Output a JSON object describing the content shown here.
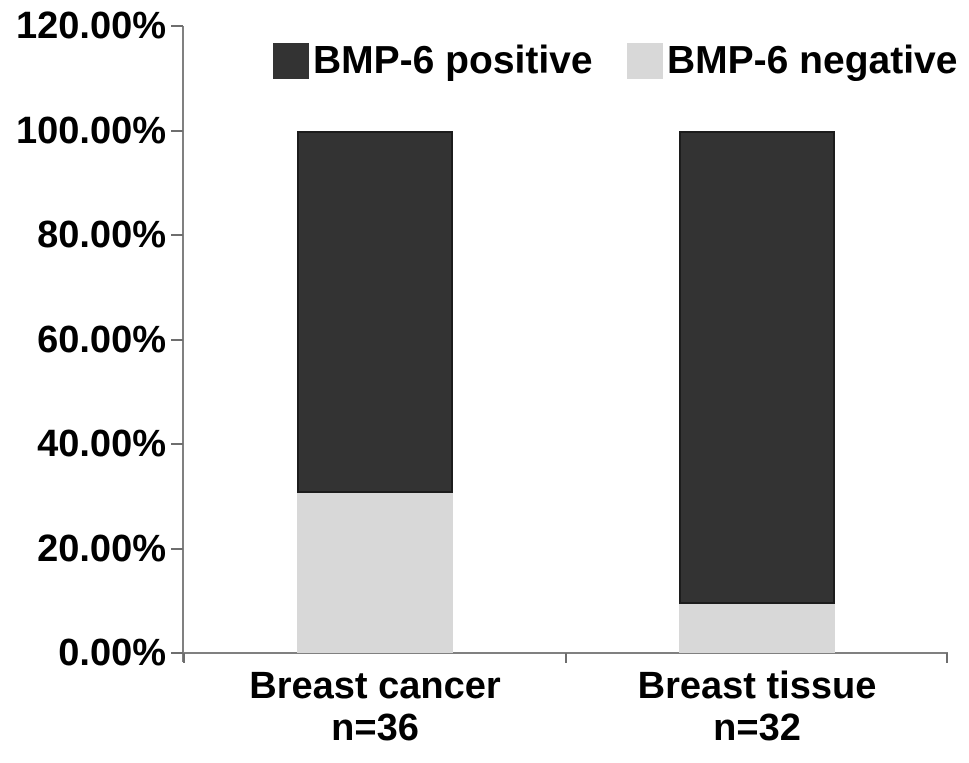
{
  "chart_data": {
    "type": "bar",
    "variant": "stacked",
    "title": "",
    "xlabel": "",
    "ylabel": "",
    "grid": false,
    "legend_position": "top",
    "categories": [
      {
        "label": "Breast cancer",
        "sub_label": "n=36"
      },
      {
        "label": "Breast tissue",
        "sub_label": "n=32"
      }
    ],
    "series": [
      {
        "name": "BMP-6 positive",
        "color": "#333333",
        "border_color": "#1c1c1c",
        "values": [
          69.44,
          90.62
        ]
      },
      {
        "name": "BMP-6 negative",
        "color": "#d8d8d8",
        "border_color": "",
        "values": [
          30.56,
          9.38
        ]
      }
    ],
    "stack_order_bottom_to_top": [
      "BMP-6 negative",
      "BMP-6 positive"
    ],
    "y_axis": {
      "min": 0,
      "max": 120,
      "step": 20,
      "unit": "%",
      "ticks": [
        {
          "value": 120,
          "label": "120.00%"
        },
        {
          "value": 100,
          "label": "100.00%"
        },
        {
          "value": 80,
          "label": "80.00%"
        },
        {
          "value": 60,
          "label": "60.00%"
        },
        {
          "value": 40,
          "label": "40.00%"
        },
        {
          "value": 20,
          "label": "20.00%"
        },
        {
          "value": 0,
          "label": "0.00%"
        }
      ]
    },
    "legend": [
      {
        "label": "BMP-6 positive",
        "color": "#333333"
      },
      {
        "label": "BMP-6 negative",
        "color": "#d8d8d8"
      }
    ]
  },
  "colors": {
    "background": "#ffffff",
    "axis_line": "#808080",
    "tick_mark": "#6e6e6e",
    "text": "#000000"
  }
}
